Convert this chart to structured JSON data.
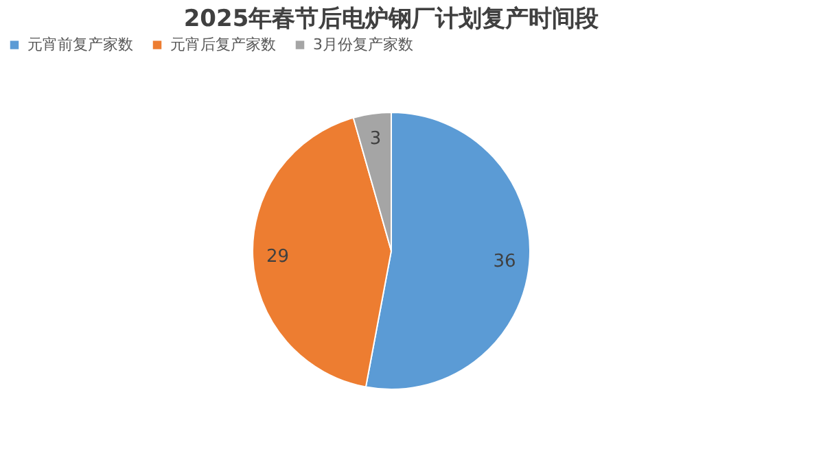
{
  "chart_data": {
    "type": "pie",
    "title": "2025年春节后电炉钢厂计划复产时间段",
    "categories": [
      "元宵前复产家数",
      "元宵后复产家数",
      "3月份复产家数"
    ],
    "values": [
      36,
      29,
      3
    ],
    "colors": [
      "#5b9bd5",
      "#ed7d31",
      "#a5a5a5"
    ],
    "data_labels": true,
    "legend": "top"
  }
}
